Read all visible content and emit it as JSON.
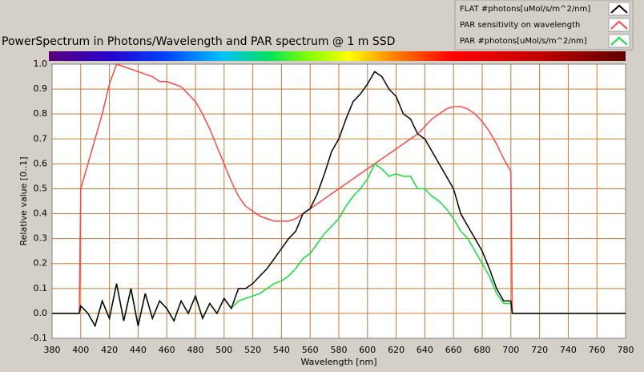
{
  "chart_data": {
    "type": "line",
    "title": "PowerSpectrum in Photons/Wavelength and PAR spectrum @ 1 m SSD",
    "x_label": "Wavelength [nm]",
    "y_label": "Relative value [0..1]",
    "x": [
      380,
      390,
      399,
      400,
      405,
      410,
      415,
      420,
      425,
      430,
      435,
      440,
      445,
      450,
      455,
      460,
      465,
      470,
      475,
      480,
      485,
      490,
      495,
      500,
      505,
      510,
      515,
      520,
      525,
      530,
      535,
      540,
      545,
      550,
      555,
      560,
      565,
      570,
      575,
      580,
      585,
      590,
      595,
      600,
      605,
      610,
      615,
      620,
      625,
      630,
      635,
      640,
      645,
      650,
      655,
      660,
      665,
      670,
      675,
      680,
      685,
      690,
      695,
      700,
      701,
      710,
      720,
      730,
      740,
      750,
      760,
      770,
      780
    ],
    "series": [
      {
        "name": "FLAT #photons[uMol/s/m^2/nm]",
        "color": "#000000",
        "values": [
          0,
          0,
          0,
          0.03,
          0.0,
          -0.05,
          0.05,
          -0.02,
          0.12,
          -0.03,
          0.1,
          -0.05,
          0.08,
          -0.02,
          0.05,
          0.02,
          -0.03,
          0.05,
          0.0,
          0.07,
          -0.02,
          0.04,
          0.0,
          0.06,
          0.02,
          0.1,
          0.1,
          0.12,
          0.15,
          0.18,
          0.22,
          0.26,
          0.3,
          0.33,
          0.4,
          0.42,
          0.48,
          0.56,
          0.65,
          0.7,
          0.78,
          0.85,
          0.88,
          0.92,
          0.97,
          0.95,
          0.9,
          0.87,
          0.8,
          0.78,
          0.72,
          0.7,
          0.65,
          0.6,
          0.55,
          0.5,
          0.4,
          0.35,
          0.3,
          0.25,
          0.18,
          0.1,
          0.05,
          0.05,
          0,
          0,
          0,
          0,
          0,
          0,
          0,
          0,
          0
        ]
      },
      {
        "name": "PAR sensitivity on wavelength",
        "color": "#ff4848",
        "values": [
          0,
          0,
          0,
          0.5,
          0.6,
          0.7,
          0.8,
          0.92,
          1.0,
          0.99,
          0.98,
          0.97,
          0.96,
          0.95,
          0.93,
          0.93,
          0.92,
          0.91,
          0.88,
          0.85,
          0.8,
          0.74,
          0.67,
          0.6,
          0.53,
          0.47,
          0.43,
          0.41,
          0.39,
          0.38,
          0.37,
          0.37,
          0.37,
          0.38,
          0.4,
          0.42,
          0.44,
          0.46,
          0.48,
          0.5,
          0.52,
          0.54,
          0.56,
          0.58,
          0.6,
          0.62,
          0.64,
          0.66,
          0.68,
          0.7,
          0.72,
          0.75,
          0.78,
          0.8,
          0.82,
          0.83,
          0.83,
          0.82,
          0.8,
          0.77,
          0.73,
          0.68,
          0.62,
          0.57,
          0,
          0,
          0,
          0,
          0,
          0,
          0,
          0,
          0
        ]
      },
      {
        "name": "PAR #photons[uMol/s/m^2/nm]",
        "color": "#10e040",
        "values": [
          0,
          0,
          0,
          0.03,
          0.0,
          -0.05,
          0.05,
          -0.02,
          0.12,
          -0.03,
          0.1,
          -0.05,
          0.08,
          -0.02,
          0.05,
          0.02,
          -0.03,
          0.05,
          0.0,
          0.07,
          -0.02,
          0.04,
          0.0,
          0.06,
          0.02,
          0.05,
          0.06,
          0.07,
          0.08,
          0.1,
          0.12,
          0.13,
          0.15,
          0.18,
          0.22,
          0.24,
          0.28,
          0.32,
          0.35,
          0.38,
          0.43,
          0.47,
          0.5,
          0.54,
          0.6,
          0.58,
          0.55,
          0.56,
          0.55,
          0.55,
          0.5,
          0.5,
          0.47,
          0.45,
          0.42,
          0.38,
          0.33,
          0.3,
          0.25,
          0.2,
          0.15,
          0.08,
          0.04,
          0.04,
          0,
          0,
          0,
          0,
          0,
          0,
          0,
          0,
          0
        ]
      }
    ],
    "xlim": [
      380,
      780
    ],
    "xticks": [
      380,
      400,
      420,
      440,
      460,
      480,
      500,
      520,
      540,
      560,
      580,
      600,
      620,
      640,
      660,
      680,
      700,
      720,
      740,
      760,
      780
    ],
    "ylim": [
      -0.1,
      1.0
    ],
    "yticks": [
      -0.1,
      {
        "value": 0,
        "label": "0.0"
      },
      0.1,
      0.2,
      0.3,
      0.4,
      0.5,
      0.6,
      0.7,
      0.8,
      0.9,
      {
        "value": 1,
        "label": "1.0"
      }
    ],
    "grid": true,
    "grid_color": "#c47a3a",
    "legend": "top-right"
  }
}
